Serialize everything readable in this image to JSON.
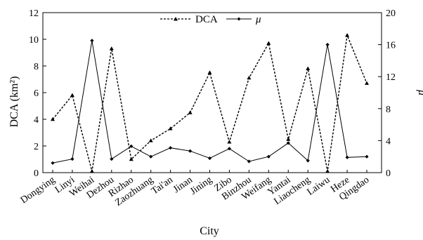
{
  "chart_data": {
    "type": "line",
    "xlabel": "City",
    "ylabel_left": "DCA (km²)",
    "ylabel_right": "μ",
    "categories": [
      "Dongying",
      "Linyi",
      "Weihai",
      "Dezhou",
      "Rizhao",
      "Zaozhuang",
      "Tai'an",
      "Jinan",
      "Jining",
      "Zibo",
      "Binzhou",
      "Weifang",
      "Yantai",
      "Liaocheng",
      "Laiwu",
      "Heze",
      "Qingdao"
    ],
    "y_left": {
      "min": 0,
      "max": 12,
      "ticks": [
        0,
        2,
        4,
        6,
        8,
        10,
        12
      ]
    },
    "y_right": {
      "min": 0,
      "max": 20,
      "ticks": [
        0,
        4,
        8,
        12,
        16,
        20
      ]
    },
    "legend_position": "top-center",
    "grid": false,
    "series": [
      {
        "name": "DCA",
        "axis": "left",
        "style": "dashed",
        "marker": "triangle",
        "values": [
          4.0,
          5.8,
          0.1,
          9.3,
          1.0,
          2.4,
          3.3,
          4.5,
          7.5,
          2.3,
          7.1,
          9.7,
          2.5,
          7.8,
          0.1,
          10.3,
          6.7
        ]
      },
      {
        "name": "μ",
        "axis": "right",
        "style": "solid",
        "marker": "diamond",
        "values": [
          1.2,
          1.7,
          16.5,
          1.7,
          3.3,
          2.0,
          3.1,
          2.7,
          1.8,
          3.0,
          1.4,
          2.0,
          3.7,
          1.5,
          16.0,
          1.9,
          2.0
        ]
      }
    ]
  }
}
